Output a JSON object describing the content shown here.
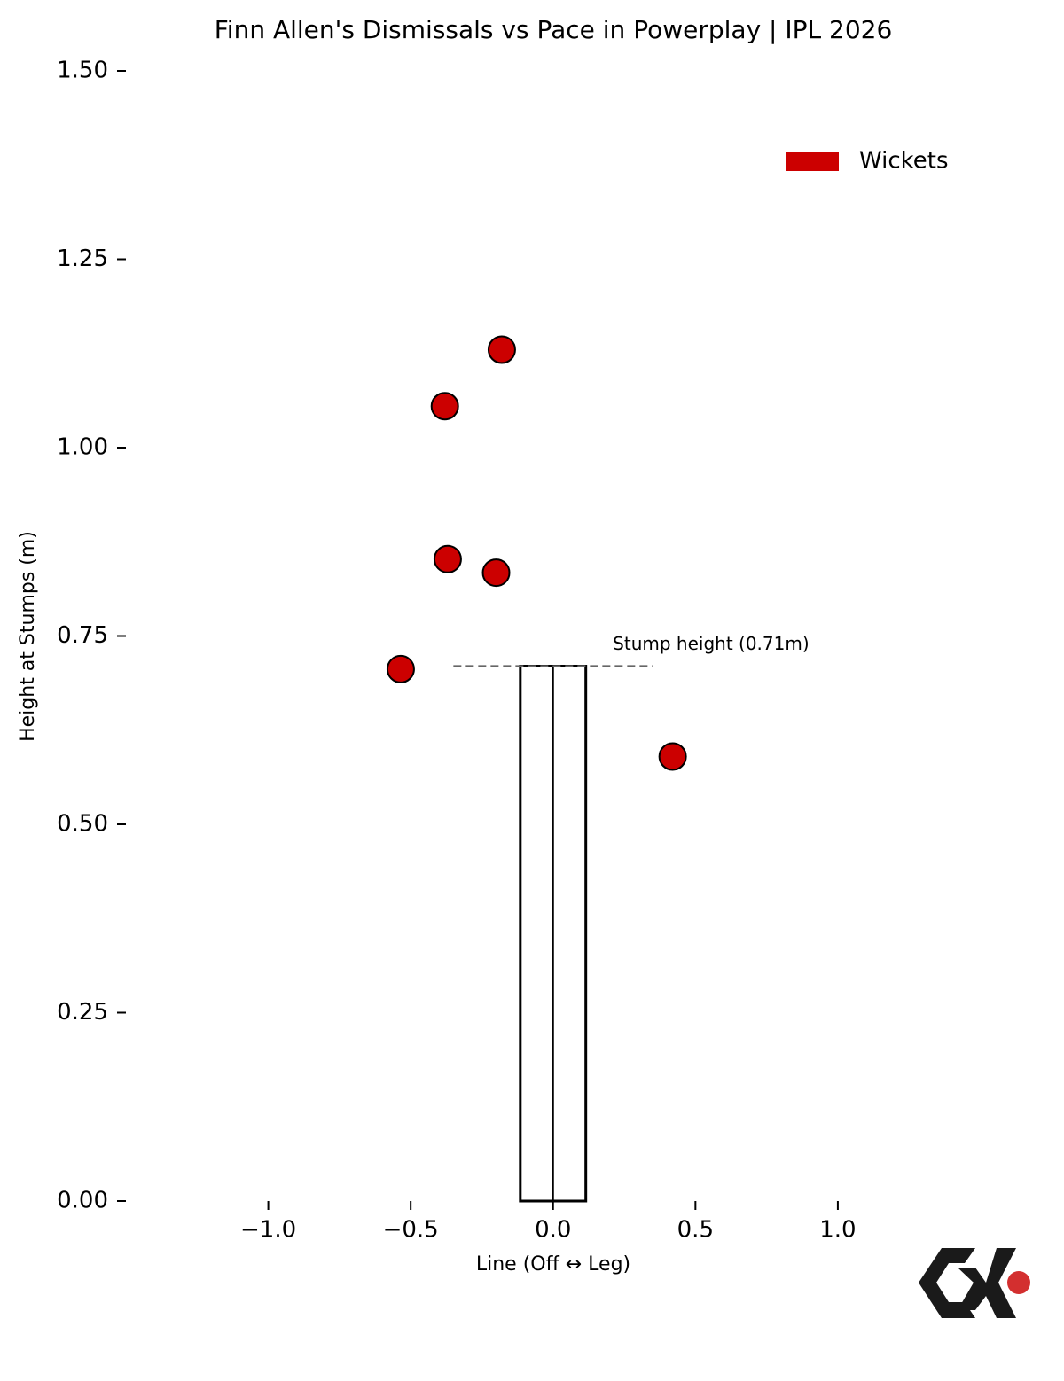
{
  "chart_data": {
    "type": "scatter",
    "title": "Finn Allen's Dismissals vs Pace in Powerplay | IPL 2026",
    "x_label": "Line (Off ↔ Leg)",
    "y_label": "Height at Stumps (m)",
    "xlim": [
      -1.5,
      1.5
    ],
    "ylim": [
      0,
      1.5
    ],
    "xticks": [
      {
        "value": -1.0,
        "label": "−1.0"
      },
      {
        "value": -0.5,
        "label": "−0.5"
      },
      {
        "value": 0,
        "label": "0.0"
      },
      0.5,
      {
        "value": 1.0,
        "label": "1.0"
      }
    ],
    "yticks": [
      {
        "value": 0,
        "label": "0.00"
      },
      0.25,
      {
        "value": 0.5,
        "label": "0.50"
      },
      0.75,
      {
        "value": 1.0,
        "label": "1.00"
      },
      1.25,
      {
        "value": 1.5,
        "label": "1.50"
      }
    ],
    "series": [
      {
        "name": "Wickets",
        "color": "#cc0000",
        "x": [
          -0.18,
          -0.38,
          -0.37,
          -0.2,
          -0.535,
          0.42
        ],
        "values": [
          1.13,
          1.055,
          0.852,
          0.834,
          0.706,
          0.59
        ]
      }
    ],
    "stumps": {
      "x": [
        -0.115,
        0,
        0.115
      ],
      "height": 0.71
    },
    "reference_line": {
      "y": 0.71,
      "x": [
        -0.35,
        0.35
      ],
      "label": "Stump height (0.71m)"
    },
    "legend": "upper right"
  }
}
